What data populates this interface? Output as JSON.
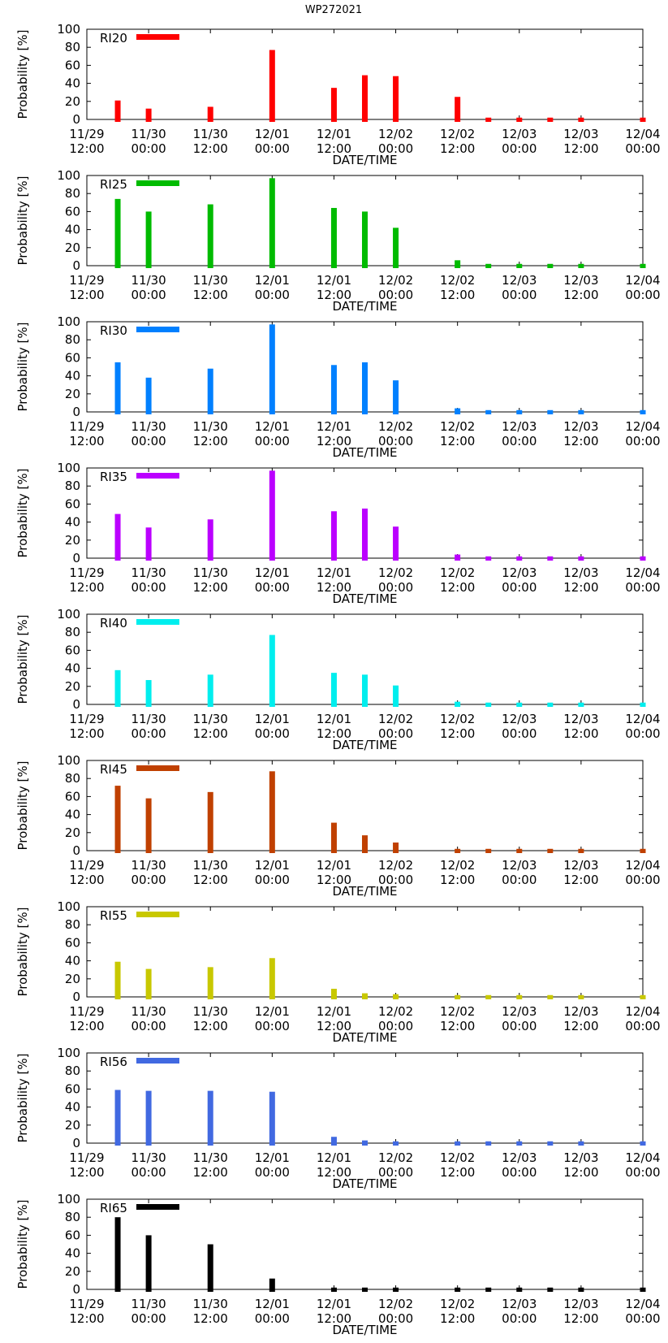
{
  "figure": {
    "title": "WP272021"
  },
  "axis_labels": {
    "x": "DATE/TIME",
    "y": "Probability [%]"
  },
  "x_ticks": [
    {
      "date": "11/29",
      "time": "12:00"
    },
    {
      "date": "11/30",
      "time": "00:00"
    },
    {
      "date": "11/30",
      "time": "12:00"
    },
    {
      "date": "12/01",
      "time": "00:00"
    },
    {
      "date": "12/01",
      "time": "12:00"
    },
    {
      "date": "12/02",
      "time": "00:00"
    },
    {
      "date": "12/02",
      "time": "12:00"
    },
    {
      "date": "12/03",
      "time": "00:00"
    },
    {
      "date": "12/03",
      "time": "12:00"
    },
    {
      "date": "12/04",
      "time": "00:00"
    }
  ],
  "y_ticks": [
    "0",
    "20",
    "40",
    "60",
    "80",
    "100"
  ],
  "chart_data": [
    {
      "type": "bar",
      "name": "RI20",
      "color": "#ff0000",
      "title": "RI20",
      "x_hours": [
        6,
        12,
        24,
        36,
        48,
        54,
        60,
        72,
        78,
        84,
        90,
        96,
        108
      ],
      "values": [
        21,
        12,
        14,
        77,
        35,
        49,
        48,
        25,
        2,
        2,
        2,
        2,
        2
      ],
      "xlabel": "DATE/TIME",
      "ylabel": "Probability [%]",
      "xlim": [
        0,
        108
      ],
      "ylim": [
        0,
        100
      ]
    },
    {
      "type": "bar",
      "name": "RI25",
      "color": "#00bb00",
      "title": "RI25",
      "x_hours": [
        6,
        12,
        24,
        36,
        48,
        54,
        60,
        72,
        78,
        84,
        90,
        96,
        108
      ],
      "values": [
        74,
        60,
        68,
        97,
        64,
        60,
        42,
        6,
        2,
        2,
        2,
        2,
        2
      ],
      "xlabel": "DATE/TIME",
      "ylabel": "Probability [%]",
      "xlim": [
        0,
        108
      ],
      "ylim": [
        0,
        100
      ]
    },
    {
      "type": "bar",
      "name": "RI30",
      "color": "#0080ff",
      "title": "RI30",
      "x_hours": [
        6,
        12,
        24,
        36,
        48,
        54,
        60,
        72,
        78,
        84,
        90,
        96,
        108
      ],
      "values": [
        55,
        38,
        48,
        97,
        52,
        55,
        35,
        4,
        2,
        2,
        2,
        2,
        2
      ],
      "xlabel": "DATE/TIME",
      "ylabel": "Probability [%]",
      "xlim": [
        0,
        108
      ],
      "ylim": [
        0,
        100
      ]
    },
    {
      "type": "bar",
      "name": "RI35",
      "color": "#bb00ff",
      "title": "RI35",
      "x_hours": [
        6,
        12,
        24,
        36,
        48,
        54,
        60,
        72,
        78,
        84,
        90,
        96,
        108
      ],
      "values": [
        49,
        34,
        43,
        97,
        52,
        55,
        35,
        4,
        2,
        2,
        2,
        2,
        2
      ],
      "xlabel": "DATE/TIME",
      "ylabel": "Probability [%]",
      "xlim": [
        0,
        108
      ],
      "ylim": [
        0,
        100
      ]
    },
    {
      "type": "bar",
      "name": "RI40",
      "color": "#00eeee",
      "title": "RI40",
      "x_hours": [
        6,
        12,
        24,
        36,
        48,
        54,
        60,
        72,
        78,
        84,
        90,
        96,
        108
      ],
      "values": [
        38,
        27,
        33,
        77,
        35,
        33,
        21,
        3,
        2,
        2,
        2,
        2,
        2
      ],
      "xlabel": "DATE/TIME",
      "ylabel": "Probability [%]",
      "xlim": [
        0,
        108
      ],
      "ylim": [
        0,
        100
      ]
    },
    {
      "type": "bar",
      "name": "RI45",
      "color": "#c04000",
      "title": "RI45",
      "x_hours": [
        6,
        12,
        24,
        36,
        48,
        54,
        60,
        72,
        78,
        84,
        90,
        96,
        108
      ],
      "values": [
        72,
        58,
        65,
        88,
        31,
        17,
        9,
        2,
        2,
        2,
        2,
        2,
        2
      ],
      "xlabel": "DATE/TIME",
      "ylabel": "Probability [%]",
      "xlim": [
        0,
        108
      ],
      "ylim": [
        0,
        100
      ]
    },
    {
      "type": "bar",
      "name": "RI55",
      "color": "#c8c800",
      "title": "RI55",
      "x_hours": [
        6,
        12,
        24,
        36,
        48,
        54,
        60,
        72,
        78,
        84,
        90,
        96,
        108
      ],
      "values": [
        39,
        31,
        33,
        43,
        9,
        4,
        3,
        2,
        2,
        2,
        2,
        2,
        2
      ],
      "xlabel": "DATE/TIME",
      "ylabel": "Probability [%]",
      "xlim": [
        0,
        108
      ],
      "ylim": [
        0,
        100
      ]
    },
    {
      "type": "bar",
      "name": "RI56",
      "color": "#4169e1",
      "title": "RI56",
      "x_hours": [
        6,
        12,
        24,
        36,
        48,
        54,
        60,
        72,
        78,
        84,
        90,
        96,
        108
      ],
      "values": [
        59,
        58,
        58,
        57,
        7,
        3,
        2,
        2,
        2,
        2,
        2,
        2,
        2
      ],
      "xlabel": "DATE/TIME",
      "ylabel": "Probability [%]",
      "xlim": [
        0,
        108
      ],
      "ylim": [
        0,
        100
      ]
    },
    {
      "type": "bar",
      "name": "RI65",
      "color": "#000000",
      "title": "RI65",
      "x_hours": [
        6,
        12,
        24,
        36,
        48,
        54,
        60,
        72,
        78,
        84,
        90,
        96,
        108
      ],
      "values": [
        80,
        60,
        50,
        12,
        2,
        2,
        2,
        2,
        2,
        2,
        2,
        2,
        2
      ],
      "xlabel": "DATE/TIME",
      "ylabel": "Probability [%]",
      "xlim": [
        0,
        108
      ],
      "ylim": [
        0,
        100
      ]
    }
  ]
}
